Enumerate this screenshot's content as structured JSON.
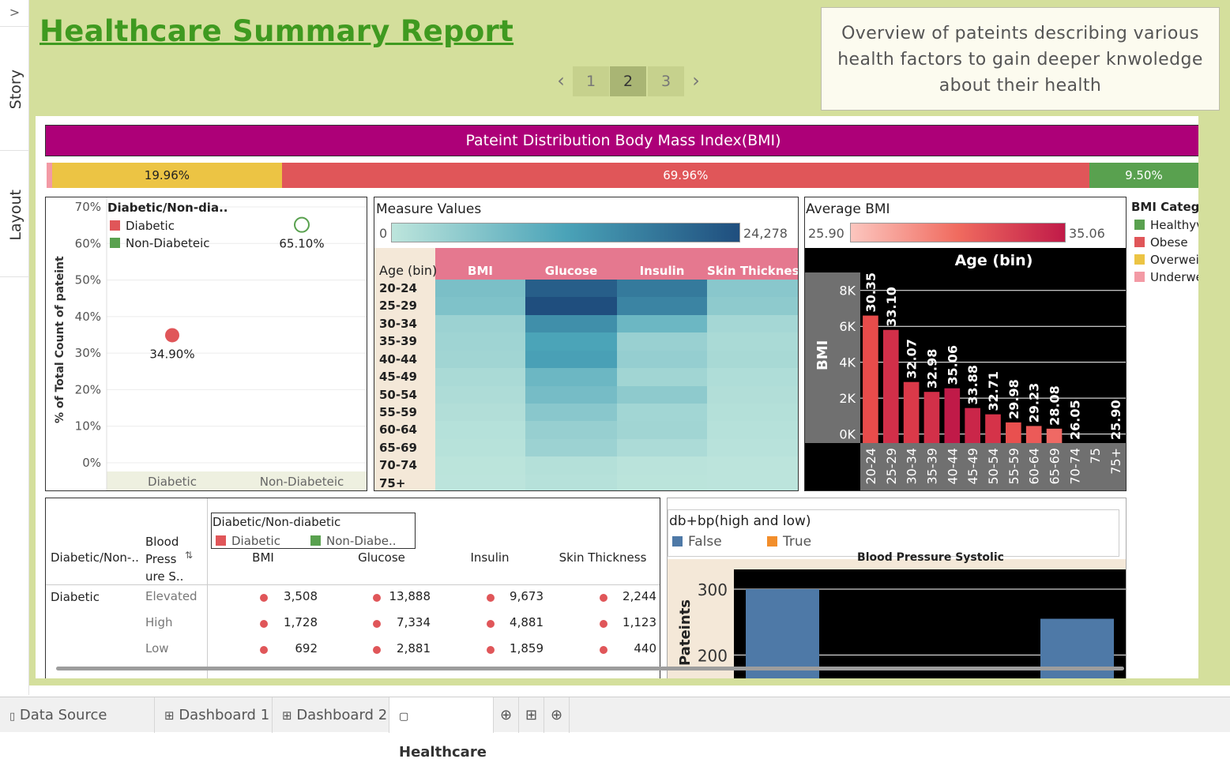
{
  "rail": {
    "toggle": ">",
    "story": "Story",
    "layout": "Layout"
  },
  "title": "Healthcare Summary Report",
  "description": "Overview of pateints describing various health factors to gain deeper  knwoledge about their health",
  "pager": {
    "prev": "‹",
    "next": "›",
    "pages": [
      "1",
      "2",
      "3"
    ],
    "current": "2"
  },
  "bmi_banner": {
    "title": "Pateint Distribution Body Mass Index(BMI)",
    "segments": [
      {
        "label": "",
        "share": 0.46,
        "color": "#f39aa5"
      },
      {
        "label": "19.96%",
        "share": 19.96,
        "color": "#ecc444"
      },
      {
        "label": "69.96%",
        "share": 69.96,
        "color": "#e05659"
      },
      {
        "label": "9.50%",
        "share": 9.5,
        "color": "#59a14f"
      }
    ]
  },
  "scatter": {
    "legend_title": "Diabetic/Non-dia..",
    "legend": [
      {
        "label": "Diabetic",
        "color": "#e05659"
      },
      {
        "label": "Non-Diabeteic",
        "color": "#59a14f"
      }
    ],
    "ylabel": "% of Total Count of pateint"
  },
  "heatmap": {
    "legend_title": "Measure Values",
    "legend_min": "0",
    "legend_max": "24,278",
    "row_header": "Age (bin)",
    "columns": [
      "BMI",
      "Glucose",
      "Insulin",
      "Skin Thickness"
    ]
  },
  "avgbmi": {
    "legend_title": "Average BMI",
    "legend_min": "25.90",
    "legend_max": "35.06",
    "header": "Age (bin)",
    "ylabel": "BMI"
  },
  "bmi_legend": {
    "title": "BMI Catego",
    "items": [
      {
        "label": "Healthyv",
        "color": "#59a14f"
      },
      {
        "label": "Obese",
        "color": "#e05659"
      },
      {
        "label": "Overwei",
        "color": "#ecc444"
      },
      {
        "label": "Underwe",
        "color": "#f39aa5"
      }
    ]
  },
  "table": {
    "legend_title": "Diabetic/Non-diabetic",
    "legend": [
      {
        "label": "Diabetic",
        "color": "#e05659"
      },
      {
        "label": "Non-Diabe..",
        "color": "#59a14f"
      }
    ],
    "h_group": "Diabetic/Non-..",
    "h_bp": [
      "Blood",
      "Press",
      "ure S.."
    ],
    "sort_icon": "⇅",
    "columns": [
      "BMI",
      "Glucose",
      "Insulin",
      "Skin Thickness"
    ],
    "group": "Diabetic",
    "rows": [
      {
        "bp": "Elevated",
        "values": [
          "3,508",
          "13,888",
          "9,673",
          "2,244"
        ]
      },
      {
        "bp": "High",
        "values": [
          "1,728",
          "7,334",
          "4,881",
          "1,123"
        ]
      },
      {
        "bp": "Low",
        "values": [
          "692",
          "2,881",
          "1,859",
          "440"
        ]
      }
    ]
  },
  "bp": {
    "legend_title": "db+bp(high and low)",
    "legend": [
      {
        "label": "False",
        "color": "#4e79a7"
      },
      {
        "label": "True",
        "color": "#f28e2b"
      }
    ],
    "header": "Blood Pressure Systolic",
    "ylabel": "Pateints"
  },
  "tabs": [
    {
      "icon": "▯",
      "label": "Data Source"
    },
    {
      "icon": "⊞",
      "label": "Dashboard 1"
    },
    {
      "icon": "⊞",
      "label": "Dashboard 2"
    },
    {
      "icon": "▢",
      "label": "Healthcare"
    }
  ],
  "tab_actions": [
    "⊕",
    "⊞",
    "⊕"
  ],
  "chart_data": [
    {
      "type": "scatter",
      "categories": [
        "Diabetic",
        "Non-Diabeteic"
      ],
      "values": [
        34.9,
        65.1
      ],
      "labels": [
        "34.90%",
        "65.10%"
      ],
      "ylim": [
        0,
        70
      ],
      "yticks": [
        "0%",
        "10%",
        "20%",
        "30%",
        "40%",
        "50%",
        "60%",
        "70%"
      ],
      "grid": true
    },
    {
      "type": "heatmap",
      "rows": [
        "20-24",
        "25-29",
        "30-34",
        "35-39",
        "40-44",
        "45-49",
        "50-54",
        "55-59",
        "60-64",
        "65-69",
        "70-74",
        "75+"
      ],
      "columns": [
        "BMI",
        "Glucose",
        "Insulin",
        "Skin Thickness"
      ],
      "values": [
        [
          7000,
          22000,
          18000,
          5500
        ],
        [
          6500,
          24278,
          16500,
          5000
        ],
        [
          3500,
          15000,
          8500,
          2500
        ],
        [
          3200,
          12000,
          3800,
          2000
        ],
        [
          3000,
          12500,
          4200,
          2200
        ],
        [
          2000,
          8500,
          3000,
          1500
        ],
        [
          1600,
          7500,
          5000,
          1200
        ],
        [
          1200,
          5500,
          2800,
          1000
        ],
        [
          800,
          4000,
          3000,
          700
        ],
        [
          600,
          3500,
          1800,
          500
        ],
        [
          200,
          1000,
          300,
          150
        ],
        [
          100,
          700,
          200,
          100
        ]
      ],
      "vmin": 0,
      "vmax": 24278
    },
    {
      "type": "bar",
      "categories": [
        "20-24",
        "25-29",
        "30-34",
        "35-39",
        "40-44",
        "45-49",
        "50-54",
        "55-59",
        "60-64",
        "65-69",
        "70-74",
        "75",
        "75+"
      ],
      "values": [
        6600,
        5800,
        2900,
        2350,
        2550,
        1450,
        1100,
        650,
        450,
        300,
        0,
        0,
        0
      ],
      "labels": [
        "30.35",
        "33.10",
        "32.07",
        "32.98",
        "35.06",
        "33.88",
        "32.71",
        "29.98",
        "29.23",
        "28.08",
        "26.05",
        "",
        "25.90"
      ],
      "color_values": [
        30.35,
        33.1,
        32.07,
        32.98,
        35.06,
        33.88,
        32.71,
        29.98,
        29.23,
        28.08,
        26.05,
        null,
        25.9
      ],
      "ylim": [
        -500,
        9000
      ],
      "yticks": [
        {
          "v": 0,
          "t": "0K"
        },
        {
          "v": 2000,
          "t": "2K"
        },
        {
          "v": 4000,
          "t": "4K"
        },
        {
          "v": 6000,
          "t": "6K"
        },
        {
          "v": 8000,
          "t": "8K"
        }
      ],
      "grid": true
    },
    {
      "type": "bar",
      "series": [
        {
          "name": "False",
          "values": [
            300,
            255
          ]
        }
      ],
      "ylim": [
        150,
        330
      ],
      "yticks": [
        {
          "v": 200,
          "t": "200"
        },
        {
          "v": 300,
          "t": "300"
        }
      ],
      "grid": true
    }
  ]
}
